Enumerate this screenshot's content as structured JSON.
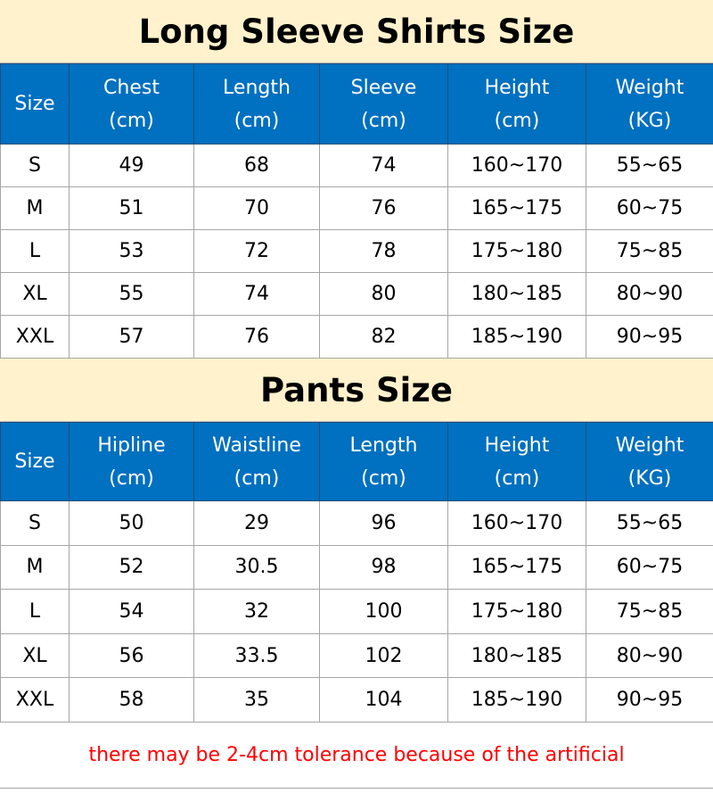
{
  "shirts": {
    "title": "Long Sleeve Shirts Size",
    "headers": [
      [
        "Size",
        ""
      ],
      [
        "Chest",
        "(cm)"
      ],
      [
        "Length",
        "(cm)"
      ],
      [
        "Sleeve",
        "(cm)"
      ],
      [
        "Height",
        "(cm)"
      ],
      [
        "Weight",
        "(KG)"
      ]
    ],
    "rows": [
      [
        "S",
        "49",
        "68",
        "74",
        "160~170",
        "55~65"
      ],
      [
        "M",
        "51",
        "70",
        "76",
        "165~175",
        "60~75"
      ],
      [
        "L",
        "53",
        "72",
        "78",
        "175~180",
        "75~85"
      ],
      [
        "XL",
        "55",
        "74",
        "80",
        "180~185",
        "80~90"
      ],
      [
        "XXL",
        "57",
        "76",
        "82",
        "185~190",
        "90~95"
      ]
    ]
  },
  "pants": {
    "title": "Pants Size",
    "headers": [
      [
        "Size",
        ""
      ],
      [
        "Hipline",
        "(cm)"
      ],
      [
        "Waistline",
        "(cm)"
      ],
      [
        "Length",
        "(cm)"
      ],
      [
        "Height",
        "(cm)"
      ],
      [
        "Weight",
        "(KG)"
      ]
    ],
    "rows": [
      [
        "S",
        "50",
        "29",
        "96",
        "160~170",
        "55~65"
      ],
      [
        "M",
        "52",
        "30.5",
        "98",
        "165~175",
        "60~75"
      ],
      [
        "L",
        "54",
        "32",
        "100",
        "175~180",
        "75~85"
      ],
      [
        "XL",
        "56",
        "33.5",
        "102",
        "180~185",
        "80~90"
      ],
      [
        "XXL",
        "58",
        "35",
        "104",
        "185~190",
        "90~95"
      ]
    ]
  },
  "footer": {
    "note": "there may be 2-4cm tolerance because of the artificial"
  },
  "colors": {
    "title_bg": "#fff2cc",
    "header_bg": "#0070c0",
    "note": "#ff0000"
  }
}
